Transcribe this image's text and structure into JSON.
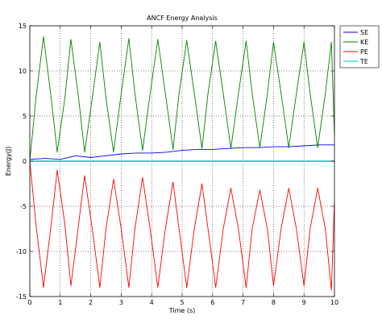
{
  "chart_data": {
    "type": "line",
    "title": "ANCF Energy Analysis",
    "xlabel": "Time (s)",
    "ylabel": "Energy(J)",
    "xlim": [
      0,
      10
    ],
    "ylim": [
      -15,
      15
    ],
    "xticks": [
      0,
      1,
      2,
      3,
      4,
      5,
      6,
      7,
      8,
      9,
      10
    ],
    "yticks": [
      -15,
      -10,
      -5,
      0,
      5,
      10,
      15
    ],
    "xtick_labels": [
      "0",
      "1",
      "2",
      "3",
      "4",
      "5",
      "6",
      "7",
      "8",
      "9",
      "10"
    ],
    "ytick_labels": [
      "-15",
      "-10",
      "-5",
      "0",
      "5",
      "10",
      "15"
    ],
    "grid": true,
    "legend_position": "outside-top-right",
    "series": [
      {
        "name": "SE",
        "color": "#0000ff",
        "x": [
          0,
          0.5,
          1.0,
          1.5,
          2.0,
          2.5,
          3.0,
          3.5,
          4.0,
          4.5,
          5.0,
          5.5,
          6.0,
          6.5,
          7.0,
          7.5,
          8.0,
          8.5,
          9.0,
          9.5,
          10.0
        ],
        "y": [
          0.2,
          0.3,
          0.2,
          0.6,
          0.4,
          0.6,
          0.8,
          0.9,
          0.9,
          1.0,
          1.2,
          1.3,
          1.3,
          1.4,
          1.5,
          1.5,
          1.6,
          1.6,
          1.7,
          1.8,
          1.8
        ]
      },
      {
        "name": "KE",
        "color": "#008000",
        "x": [
          0,
          0.2,
          0.45,
          0.7,
          0.9,
          1.15,
          1.35,
          1.6,
          1.8,
          2.05,
          2.3,
          2.5,
          2.75,
          3.0,
          3.25,
          3.45,
          3.7,
          3.95,
          4.2,
          4.45,
          4.7,
          4.9,
          5.15,
          5.4,
          5.65,
          5.85,
          6.1,
          6.35,
          6.6,
          6.85,
          7.1,
          7.3,
          7.55,
          7.8,
          8.0,
          8.25,
          8.5,
          8.75,
          9.0,
          9.2,
          9.45,
          9.7,
          9.9,
          10.0
        ],
        "y": [
          0.0,
          7.0,
          13.8,
          7.0,
          1.0,
          7.0,
          13.5,
          7.0,
          1.0,
          7.0,
          13.2,
          7.0,
          1.0,
          7.5,
          13.6,
          7.5,
          1.2,
          7.5,
          13.5,
          7.5,
          1.3,
          7.5,
          13.4,
          7.5,
          1.4,
          7.5,
          13.3,
          7.5,
          1.4,
          7.5,
          13.3,
          7.5,
          1.5,
          7.5,
          13.2,
          7.5,
          1.5,
          7.5,
          13.2,
          7.5,
          1.5,
          7.5,
          13.2,
          3.0
        ]
      },
      {
        "name": "PE",
        "color": "#ff0000",
        "x": [
          0,
          0.2,
          0.45,
          0.7,
          0.9,
          1.15,
          1.35,
          1.6,
          1.8,
          2.05,
          2.3,
          2.5,
          2.75,
          3.0,
          3.25,
          3.45,
          3.7,
          3.95,
          4.2,
          4.45,
          4.7,
          4.9,
          5.15,
          5.4,
          5.65,
          5.85,
          6.1,
          6.35,
          6.6,
          6.85,
          7.1,
          7.3,
          7.55,
          7.8,
          8.0,
          8.25,
          8.5,
          8.75,
          9.0,
          9.2,
          9.45,
          9.7,
          9.9,
          10.0
        ],
        "y": [
          0.0,
          -7.0,
          -14.0,
          -7.0,
          -1.0,
          -7.0,
          -13.8,
          -7.0,
          -1.6,
          -7.5,
          -14.0,
          -7.5,
          -2.0,
          -7.5,
          -14.0,
          -7.5,
          -1.8,
          -7.5,
          -14.0,
          -7.5,
          -2.3,
          -7.5,
          -14.0,
          -7.5,
          -2.5,
          -7.5,
          -14.0,
          -7.5,
          -3.0,
          -7.5,
          -14.0,
          -7.5,
          -3.2,
          -7.5,
          -13.8,
          -7.5,
          -3.0,
          -7.5,
          -13.8,
          -7.5,
          -3.0,
          -7.5,
          -14.3,
          -4.5
        ]
      },
      {
        "name": "TE",
        "color": "#00bfbf",
        "x": [
          0,
          10
        ],
        "y": [
          0.0,
          0.0
        ]
      }
    ]
  }
}
